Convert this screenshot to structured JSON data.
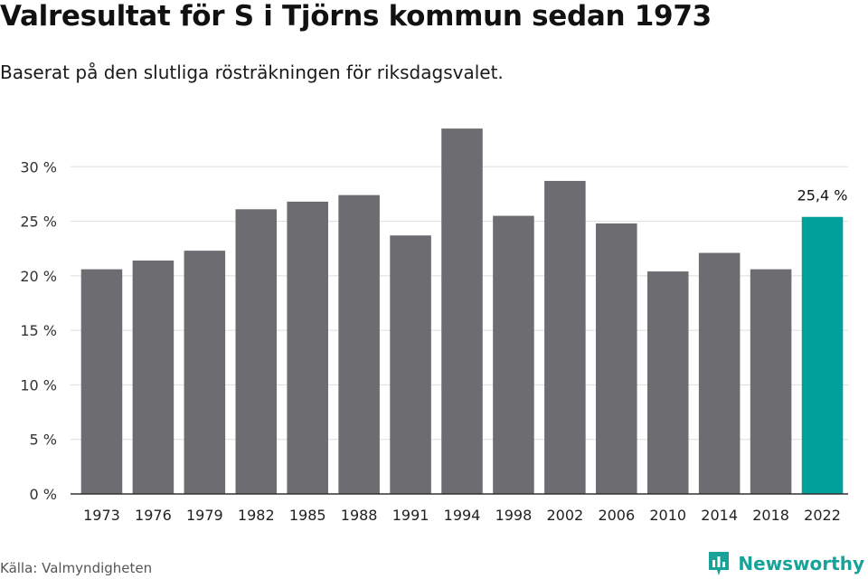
{
  "title": "Valresultat för S i Tjörns kommun sedan 1973",
  "subtitle": "Baserat på den slutliga rösträkningen för riksdagsvalet.",
  "source": "Källa: Valmyndigheten",
  "brand": "Newsworthy",
  "colors": {
    "bar": "#6d6c71",
    "highlight": "#00a19a",
    "grid": "#dddddd",
    "axis": "#333333"
  },
  "chart_data": {
    "type": "bar",
    "categories": [
      "1973",
      "1976",
      "1979",
      "1982",
      "1985",
      "1988",
      "1991",
      "1994",
      "1998",
      "2002",
      "2006",
      "2010",
      "2014",
      "2018",
      "2022"
    ],
    "values": [
      20.6,
      21.4,
      22.3,
      26.1,
      26.8,
      27.4,
      23.7,
      33.5,
      25.5,
      28.7,
      24.8,
      20.4,
      22.1,
      20.6,
      25.4
    ],
    "highlight_index": 14,
    "highlight_label": "25,4 %",
    "ylim": [
      0,
      35
    ],
    "yticks": [
      0,
      5,
      10,
      15,
      20,
      25,
      30
    ],
    "ytick_labels": [
      "0 %",
      "5 %",
      "10 %",
      "15 %",
      "20 %",
      "25 %",
      "30 %"
    ],
    "xlabel": "",
    "ylabel": "",
    "grid": true
  }
}
